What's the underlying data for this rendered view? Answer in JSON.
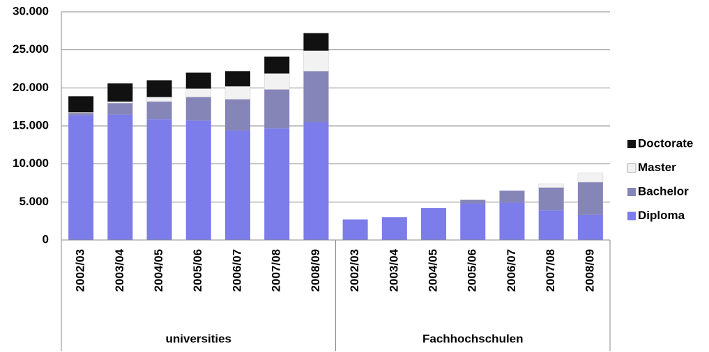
{
  "chart_data": {
    "type": "stacked_bar",
    "groups": [
      {
        "name": "universities",
        "categories": [
          "2002/03",
          "2003/04",
          "2004/05",
          "2005/06",
          "2006/07",
          "2007/08",
          "2008/09"
        ]
      },
      {
        "name": "Fachhochschulen",
        "categories": [
          "2002/03",
          "2003/04",
          "2004/05",
          "2005/06",
          "2006/07",
          "2007/08",
          "2008/09"
        ]
      }
    ],
    "series": [
      {
        "name": "Diploma",
        "color": "#7c7cea",
        "values": [
          16400,
          16500,
          15900,
          15700,
          14400,
          14700,
          15500,
          2700,
          3000,
          4200,
          4800,
          4900,
          3900,
          3300
        ]
      },
      {
        "name": "Bachelor",
        "color": "#8585b8",
        "values": [
          300,
          1500,
          2300,
          3100,
          4100,
          5100,
          6700,
          0,
          0,
          0,
          500,
          1600,
          3000,
          4300
        ]
      },
      {
        "name": "Master",
        "color": "#f2f2f2",
        "values": [
          100,
          200,
          600,
          1100,
          1700,
          2100,
          2700,
          0,
          0,
          0,
          0,
          0,
          500,
          1200
        ]
      },
      {
        "name": "Doctorate",
        "color": "#111111",
        "values": [
          2100,
          2400,
          2200,
          2100,
          2000,
          2200,
          2300,
          0,
          0,
          0,
          0,
          0,
          0,
          0
        ]
      }
    ],
    "ylim": [
      0,
      30000
    ],
    "yticks": [
      0,
      {
        "value": 5000,
        "label": "5.000"
      },
      {
        "value": 10000,
        "label": "10.000"
      },
      {
        "value": 15000,
        "label": "15.000"
      },
      {
        "value": 20000,
        "label": "20.000"
      },
      {
        "value": 25000,
        "label": "25.000"
      },
      {
        "value": 30000,
        "label": "30.000"
      }
    ],
    "grid": true,
    "legend": "right"
  }
}
